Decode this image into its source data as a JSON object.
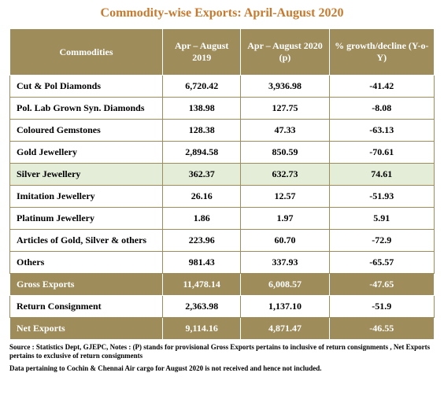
{
  "title": "Commodity-wise Exports: April-August 2020",
  "title_color": "#c77a2e",
  "title_fontsize": 16,
  "header_bg": "#9e8c5a",
  "header_color": "#ffffff",
  "row_border_color": "#9e8c5a",
  "highlight_bg": "#e3edd8",
  "total_bg": "#9e8c5a",
  "columns": [
    "Commodities",
    "Apr – August 2019",
    "Apr – August 2020 (p)",
    "% growth/decline (Y-o-Y)"
  ],
  "rows": [
    {
      "label": "Cut & Pol Diamonds",
      "v2019": "6,720.42",
      "v2020": "3,936.98",
      "growth": "-41.42",
      "type": "normal"
    },
    {
      "label": "Pol. Lab Grown Syn. Diamonds",
      "v2019": "138.98",
      "v2020": "127.75",
      "growth": "-8.08",
      "type": "normal"
    },
    {
      "label": "Coloured Gemstones",
      "v2019": "128.38",
      "v2020": "47.33",
      "growth": "-63.13",
      "type": "normal"
    },
    {
      "label": "Gold Jewellery",
      "v2019": "2,894.58",
      "v2020": "850.59",
      "growth": "-70.61",
      "type": "normal"
    },
    {
      "label": "Silver Jewellery",
      "v2019": "362.37",
      "v2020": "632.73",
      "growth": "74.61",
      "type": "highlight"
    },
    {
      "label": "Imitation Jewellery",
      "v2019": "26.16",
      "v2020": "12.57",
      "growth": "-51.93",
      "type": "normal"
    },
    {
      "label": "Platinum Jewellery",
      "v2019": "1.86",
      "v2020": "1.97",
      "growth": "5.91",
      "type": "normal"
    },
    {
      "label": "Articles of Gold, Silver & others",
      "v2019": "223.96",
      "v2020": "60.70",
      "growth": "-72.9",
      "type": "normal"
    },
    {
      "label": "Others",
      "v2019": "981.43",
      "v2020": "337.93",
      "growth": "-65.57",
      "type": "normal"
    },
    {
      "label": "Gross Exports",
      "v2019": "11,478.14",
      "v2020": "6,008.57",
      "growth": "-47.65",
      "type": "total"
    },
    {
      "label": "Return Consignment",
      "v2019": "2,363.98",
      "v2020": "1,137.10",
      "growth": "-51.9",
      "type": "normal"
    },
    {
      "label": "Net Exports",
      "v2019": "9,114.16",
      "v2020": "4,871.47",
      "growth": "-46.55",
      "type": "total"
    }
  ],
  "footnotes": [
    "Source : Statistics Dept, GJEPC, Notes : (P) stands for provisional  Gross  Exports pertains to inclusive of return consignments , Net Exports pertains to exclusive of return consignments",
    "Data pertaining to Cochin & Chennai Air cargo for August 2020 is not received and hence not included."
  ]
}
